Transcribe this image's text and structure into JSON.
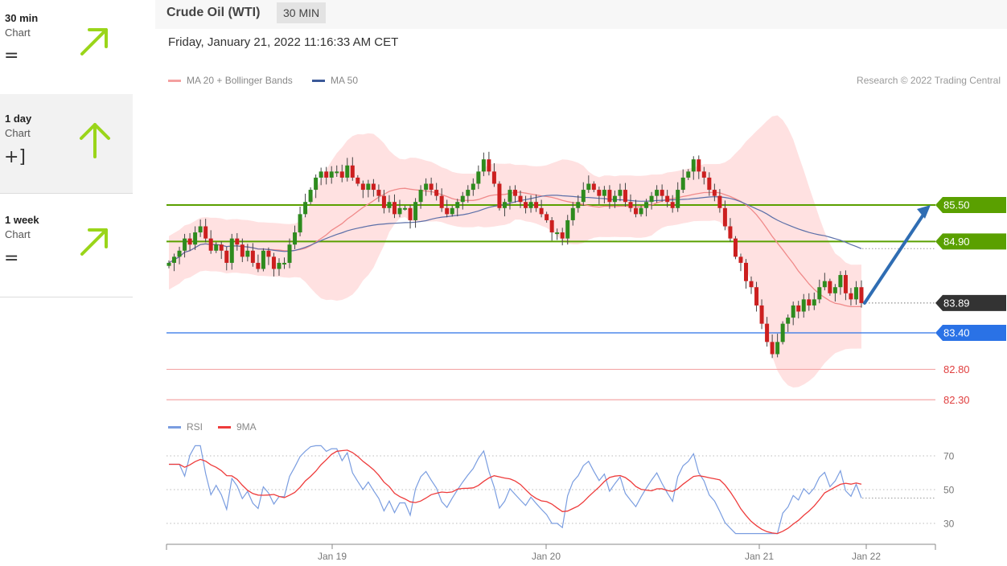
{
  "sidebar": {
    "items": [
      {
        "name": "30 min",
        "sub": "Chart",
        "trend": "=",
        "arrow": "up-right"
      },
      {
        "name": "1 day",
        "sub": "Chart",
        "trend": "+]",
        "arrow": "up"
      },
      {
        "name": "1 week",
        "sub": "Chart",
        "trend": "=",
        "arrow": "up-right"
      }
    ]
  },
  "header": {
    "title": "Crude Oil (WTI)",
    "timeframe": "30 MIN",
    "datetime": "Friday, January 21, 2022 11:16:33 AM CET"
  },
  "legend": {
    "ma20": "MA 20 + Bollinger Bands",
    "ma50": "MA 50",
    "rsi": "RSI",
    "ma9": "9MA"
  },
  "copyright": "Research © 2022 Trading Central",
  "colors": {
    "accent_green": "#5aa000",
    "arrow_green": "#9ad51a",
    "support_blue": "#2a72e6",
    "resistance_red": "#f4a8a8",
    "projection": "#2f6db3",
    "bollinger": "#ffdcdc",
    "ma20": "#f08a8a",
    "ma50": "#5b6fa8",
    "candle_up": "#2e8b1e",
    "candle_down": "#cc1f1f",
    "rsi": "#7a9de0",
    "rsi_ma": "#ee3b3b"
  },
  "chart_data": [
    {
      "type": "candlestick",
      "title": "Crude Oil (WTI)",
      "x_ticks": [
        "Jan 19",
        "Jan 20",
        "Jan 21",
        "Jan 22"
      ],
      "ylim": [
        82.1,
        86.2
      ],
      "levels": [
        {
          "value": 85.5,
          "label": "85.50",
          "kind": "resistance",
          "color": "#5aa000"
        },
        {
          "value": 84.9,
          "label": "84.90",
          "kind": "resistance",
          "color": "#5aa000"
        },
        {
          "value": 83.89,
          "label": "83.89",
          "kind": "last",
          "color": "#333333"
        },
        {
          "value": 83.4,
          "label": "83.40",
          "kind": "pivot",
          "color": "#2a72e6"
        },
        {
          "value": 82.8,
          "label": "82.80",
          "kind": "support",
          "color": "#f4a8a8"
        },
        {
          "value": 82.3,
          "label": "82.30",
          "kind": "support",
          "color": "#f4a8a8"
        }
      ],
      "projection": {
        "from": 83.89,
        "to": 85.5
      },
      "closes": [
        84.55,
        84.65,
        84.75,
        84.95,
        84.85,
        85.05,
        85.15,
        84.95,
        84.75,
        84.85,
        84.75,
        84.55,
        84.95,
        84.85,
        84.65,
        84.75,
        84.55,
        84.45,
        84.75,
        84.65,
        84.45,
        84.55,
        84.55,
        84.85,
        85.05,
        85.35,
        85.55,
        85.75,
        85.95,
        86.05,
        85.95,
        86.05,
        86.05,
        85.95,
        86.15,
        85.95,
        85.85,
        85.75,
        85.85,
        85.75,
        85.65,
        85.45,
        85.55,
        85.35,
        85.45,
        85.45,
        85.25,
        85.55,
        85.75,
        85.85,
        85.75,
        85.65,
        85.45,
        85.35,
        85.45,
        85.55,
        85.65,
        85.75,
        85.85,
        86.05,
        86.25,
        86.05,
        85.85,
        85.45,
        85.55,
        85.75,
        85.65,
        85.55,
        85.45,
        85.55,
        85.45,
        85.35,
        85.25,
        85.05,
        85.05,
        84.95,
        85.25,
        85.45,
        85.55,
        85.75,
        85.85,
        85.75,
        85.65,
        85.75,
        85.55,
        85.65,
        85.75,
        85.55,
        85.45,
        85.35,
        85.45,
        85.55,
        85.65,
        85.75,
        85.65,
        85.55,
        85.45,
        85.75,
        85.95,
        86.05,
        86.25,
        86.05,
        85.95,
        85.75,
        85.65,
        85.45,
        85.15,
        84.95,
        84.65,
        84.55,
        84.25,
        84.15,
        83.85,
        83.55,
        83.25,
        83.05,
        83.25,
        83.55,
        83.65,
        83.85,
        83.75,
        83.95,
        83.85,
        83.95,
        84.15,
        84.25,
        84.05,
        84.15,
        84.35,
        84.05,
        83.95,
        84.15,
        83.89
      ]
    },
    {
      "type": "line",
      "title": "",
      "series": [
        {
          "name": "RSI"
        },
        {
          "name": "9MA"
        }
      ],
      "x_ticks": [
        "Jan 19",
        "Jan 20",
        "Jan 21",
        "Jan 22"
      ],
      "y_ticks": [
        30,
        50,
        70
      ],
      "ylim": [
        20,
        80
      ],
      "rsi_last": 45
    }
  ]
}
